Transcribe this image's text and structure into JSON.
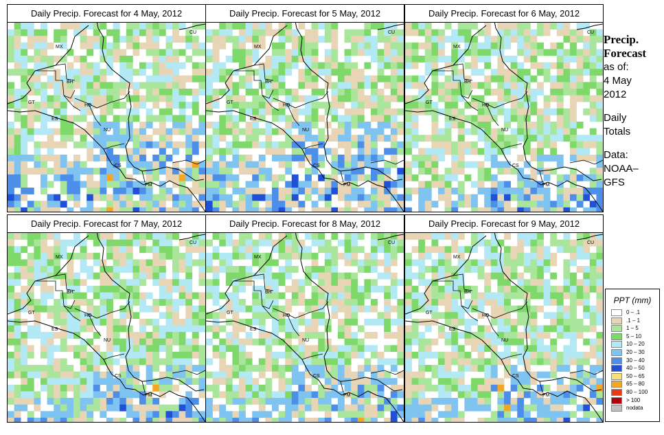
{
  "panels": [
    {
      "title": "Daily Precip. Forecast for  4 May, 2012"
    },
    {
      "title": "Daily Precip. Forecast for  5 May, 2012"
    },
    {
      "title": "Daily Precip. Forecast for  6 May, 2012"
    },
    {
      "title": "Daily Precip. Forecast for  7 May, 2012"
    },
    {
      "title": "Daily Precip. Forecast for  8 May, 2012"
    },
    {
      "title": "Daily Precip. Forecast for  9 May, 2012"
    }
  ],
  "country_labels": [
    "MX",
    "BH",
    "GT",
    "HO",
    "ES",
    "NU",
    "CS",
    "PM",
    "CU"
  ],
  "side": {
    "title_line1": "Precip.",
    "title_line2": "Forecast",
    "asof": "as of:",
    "date1": "4 May",
    "date2": "2012",
    "daily1": "Daily",
    "daily2": "Totals",
    "data1": "Data:",
    "data2": "NOAA–",
    "data3": "GFS"
  },
  "legend": {
    "title": "PPT (mm)",
    "items": [
      {
        "label": "0 – .1",
        "color": "#ffffff"
      },
      {
        "label": ".1 – 1",
        "color": "#e8d5b5"
      },
      {
        "label": "1 – 5",
        "color": "#a9e69b"
      },
      {
        "label": "5 – 10",
        "color": "#7ed86a"
      },
      {
        "label": "10 – 20",
        "color": "#b3e8f5"
      },
      {
        "label": "20 – 30",
        "color": "#7fc4f0"
      },
      {
        "label": "30 – 40",
        "color": "#4d8fe8"
      },
      {
        "label": "40 – 50",
        "color": "#2050d8"
      },
      {
        "label": "50 – 65",
        "color": "#f7e07a"
      },
      {
        "label": "65 – 80",
        "color": "#f5a623"
      },
      {
        "label": "80 – 100",
        "color": "#e83a14"
      },
      {
        "label": "> 100",
        "color": "#b0000a"
      },
      {
        "label": "nodata",
        "color": "#c0c0c0"
      }
    ]
  }
}
